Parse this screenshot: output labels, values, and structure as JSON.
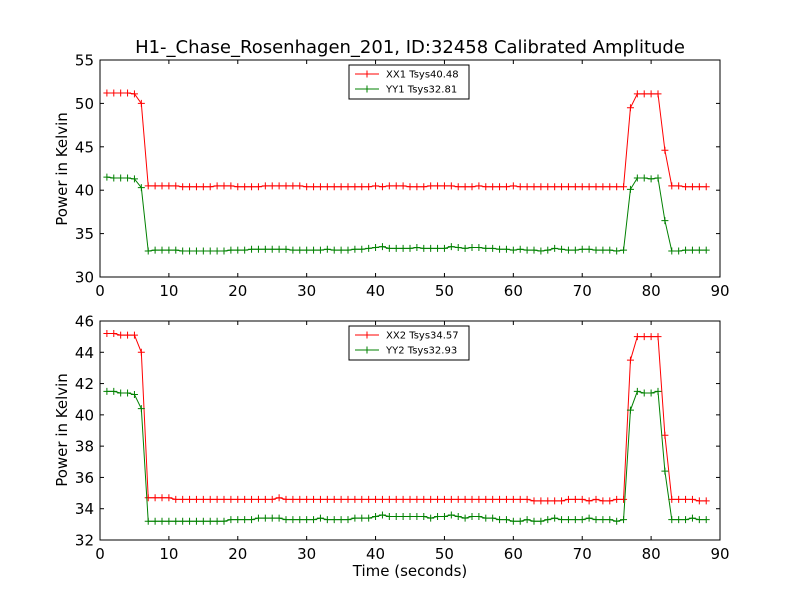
{
  "chart_data": [
    {
      "type": "line",
      "title": "H1-_Chase_Rosenhagen_201, ID:32458 Calibrated Amplitude",
      "xlabel": "",
      "ylabel": "Power in Kelvin",
      "xlim": [
        0,
        90
      ],
      "ylim": [
        30,
        55
      ],
      "xticks": [
        0,
        10,
        20,
        30,
        40,
        50,
        60,
        70,
        80,
        90
      ],
      "yticks": [
        30,
        35,
        40,
        45,
        50,
        55
      ],
      "x": [
        1,
        2,
        3,
        4,
        5,
        6,
        7,
        8,
        9,
        10,
        11,
        12,
        13,
        14,
        15,
        16,
        17,
        18,
        19,
        20,
        21,
        22,
        23,
        24,
        25,
        26,
        27,
        28,
        29,
        30,
        31,
        32,
        33,
        34,
        35,
        36,
        37,
        38,
        39,
        40,
        41,
        42,
        43,
        44,
        45,
        46,
        47,
        48,
        49,
        50,
        51,
        52,
        53,
        54,
        55,
        56,
        57,
        58,
        59,
        60,
        61,
        62,
        63,
        64,
        65,
        66,
        67,
        68,
        69,
        70,
        71,
        72,
        73,
        74,
        75,
        76,
        77,
        78,
        79,
        80,
        81,
        82,
        83,
        84,
        85,
        86,
        87,
        88
      ],
      "legend_position": "upper center",
      "series": [
        {
          "name": "XX1 Tsys40.48",
          "color": "#ff0000",
          "values": [
            51.2,
            51.2,
            51.2,
            51.2,
            51.1,
            50.0,
            40.5,
            40.5,
            40.5,
            40.5,
            40.5,
            40.4,
            40.4,
            40.4,
            40.4,
            40.4,
            40.5,
            40.5,
            40.5,
            40.4,
            40.4,
            40.4,
            40.4,
            40.5,
            40.5,
            40.5,
            40.5,
            40.5,
            40.5,
            40.4,
            40.4,
            40.4,
            40.4,
            40.4,
            40.4,
            40.4,
            40.4,
            40.4,
            40.4,
            40.5,
            40.4,
            40.5,
            40.5,
            40.5,
            40.4,
            40.4,
            40.4,
            40.5,
            40.5,
            40.5,
            40.5,
            40.4,
            40.4,
            40.4,
            40.5,
            40.4,
            40.4,
            40.4,
            40.4,
            40.5,
            40.4,
            40.4,
            40.4,
            40.4,
            40.4,
            40.4,
            40.4,
            40.4,
            40.4,
            40.4,
            40.4,
            40.4,
            40.4,
            40.4,
            40.4,
            40.4,
            49.5,
            51.1,
            51.1,
            51.1,
            51.1,
            44.6,
            40.5,
            40.5,
            40.4,
            40.4,
            40.4,
            40.4
          ]
        },
        {
          "name": "YY1 Tsys32.81",
          "color": "#008000",
          "values": [
            41.5,
            41.4,
            41.4,
            41.4,
            41.3,
            40.3,
            33.0,
            33.1,
            33.1,
            33.1,
            33.1,
            33.0,
            33.0,
            33.0,
            33.0,
            33.0,
            33.0,
            33.0,
            33.1,
            33.1,
            33.1,
            33.2,
            33.2,
            33.2,
            33.2,
            33.2,
            33.2,
            33.1,
            33.1,
            33.1,
            33.1,
            33.1,
            33.2,
            33.1,
            33.1,
            33.1,
            33.2,
            33.2,
            33.3,
            33.4,
            33.5,
            33.3,
            33.3,
            33.3,
            33.3,
            33.4,
            33.3,
            33.3,
            33.3,
            33.3,
            33.5,
            33.4,
            33.3,
            33.4,
            33.4,
            33.3,
            33.3,
            33.2,
            33.2,
            33.1,
            33.2,
            33.1,
            33.1,
            33.0,
            33.1,
            33.3,
            33.2,
            33.1,
            33.1,
            33.2,
            33.2,
            33.1,
            33.1,
            33.1,
            33.0,
            33.1,
            40.1,
            41.4,
            41.4,
            41.3,
            41.4,
            36.5,
            33.0,
            33.0,
            33.1,
            33.1,
            33.1,
            33.1
          ]
        }
      ]
    },
    {
      "type": "line",
      "title": "",
      "xlabel": "Time (seconds)",
      "ylabel": "Power in Kelvin",
      "xlim": [
        0,
        90
      ],
      "ylim": [
        32,
        46
      ],
      "xticks": [
        0,
        10,
        20,
        30,
        40,
        50,
        60,
        70,
        80,
        90
      ],
      "yticks": [
        32,
        34,
        36,
        38,
        40,
        42,
        44,
        46
      ],
      "x": [
        1,
        2,
        3,
        4,
        5,
        6,
        7,
        8,
        9,
        10,
        11,
        12,
        13,
        14,
        15,
        16,
        17,
        18,
        19,
        20,
        21,
        22,
        23,
        24,
        25,
        26,
        27,
        28,
        29,
        30,
        31,
        32,
        33,
        34,
        35,
        36,
        37,
        38,
        39,
        40,
        41,
        42,
        43,
        44,
        45,
        46,
        47,
        48,
        49,
        50,
        51,
        52,
        53,
        54,
        55,
        56,
        57,
        58,
        59,
        60,
        61,
        62,
        63,
        64,
        65,
        66,
        67,
        68,
        69,
        70,
        71,
        72,
        73,
        74,
        75,
        76,
        77,
        78,
        79,
        80,
        81,
        82,
        83,
        84,
        85,
        86,
        87,
        88
      ],
      "legend_position": "upper center",
      "series": [
        {
          "name": "XX2 Tsys34.57",
          "color": "#ff0000",
          "values": [
            45.2,
            45.2,
            45.1,
            45.1,
            45.1,
            44.0,
            34.7,
            34.7,
            34.7,
            34.7,
            34.6,
            34.6,
            34.6,
            34.6,
            34.6,
            34.6,
            34.6,
            34.6,
            34.6,
            34.6,
            34.6,
            34.6,
            34.6,
            34.6,
            34.6,
            34.7,
            34.6,
            34.6,
            34.6,
            34.6,
            34.6,
            34.6,
            34.6,
            34.6,
            34.6,
            34.6,
            34.6,
            34.6,
            34.6,
            34.6,
            34.6,
            34.6,
            34.6,
            34.6,
            34.6,
            34.6,
            34.6,
            34.6,
            34.6,
            34.6,
            34.6,
            34.6,
            34.6,
            34.6,
            34.6,
            34.6,
            34.6,
            34.6,
            34.6,
            34.6,
            34.6,
            34.6,
            34.5,
            34.5,
            34.5,
            34.5,
            34.5,
            34.6,
            34.6,
            34.6,
            34.5,
            34.6,
            34.5,
            34.5,
            34.6,
            34.6,
            43.5,
            45.0,
            45.0,
            45.0,
            45.0,
            38.7,
            34.6,
            34.6,
            34.6,
            34.6,
            34.5,
            34.5
          ]
        },
        {
          "name": "YY2 Tsys32.93",
          "color": "#008000",
          "values": [
            41.5,
            41.5,
            41.4,
            41.4,
            41.3,
            40.4,
            33.2,
            33.2,
            33.2,
            33.2,
            33.2,
            33.2,
            33.2,
            33.2,
            33.2,
            33.2,
            33.2,
            33.2,
            33.3,
            33.3,
            33.3,
            33.3,
            33.4,
            33.4,
            33.4,
            33.4,
            33.3,
            33.3,
            33.3,
            33.3,
            33.3,
            33.4,
            33.3,
            33.3,
            33.3,
            33.3,
            33.4,
            33.4,
            33.4,
            33.5,
            33.6,
            33.5,
            33.5,
            33.5,
            33.5,
            33.5,
            33.5,
            33.4,
            33.5,
            33.5,
            33.6,
            33.5,
            33.4,
            33.5,
            33.5,
            33.4,
            33.4,
            33.3,
            33.3,
            33.2,
            33.2,
            33.3,
            33.2,
            33.2,
            33.3,
            33.4,
            33.3,
            33.3,
            33.3,
            33.3,
            33.4,
            33.3,
            33.3,
            33.3,
            33.2,
            33.3,
            40.3,
            41.5,
            41.4,
            41.4,
            41.5,
            36.4,
            33.3,
            33.3,
            33.3,
            33.4,
            33.3,
            33.3
          ]
        }
      ]
    }
  ]
}
